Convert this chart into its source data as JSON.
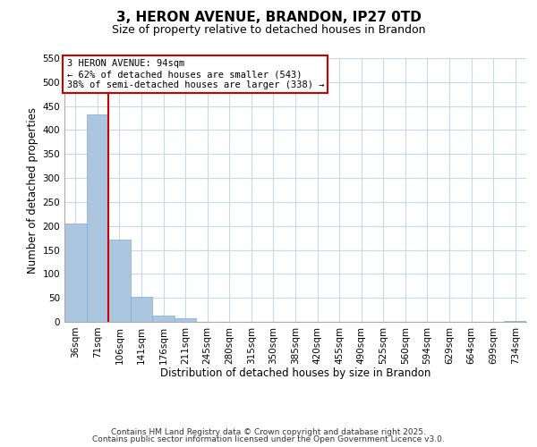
{
  "title": "3, HERON AVENUE, BRANDON, IP27 0TD",
  "subtitle": "Size of property relative to detached houses in Brandon",
  "xlabel": "Distribution of detached houses by size in Brandon",
  "ylabel": "Number of detached properties",
  "bar_labels": [
    "36sqm",
    "71sqm",
    "106sqm",
    "141sqm",
    "176sqm",
    "211sqm",
    "245sqm",
    "280sqm",
    "315sqm",
    "350sqm",
    "385sqm",
    "420sqm",
    "455sqm",
    "490sqm",
    "525sqm",
    "560sqm",
    "594sqm",
    "629sqm",
    "664sqm",
    "699sqm",
    "734sqm"
  ],
  "bar_values": [
    205,
    432,
    172,
    52,
    13,
    7,
    0,
    0,
    0,
    0,
    0,
    0,
    0,
    0,
    0,
    0,
    0,
    0,
    0,
    0,
    2
  ],
  "bar_color": "#adc6e0",
  "bar_edge_color": "#7bafd4",
  "grid_color": "#c8d8e8",
  "background_color": "#ffffff",
  "ylim": [
    0,
    550
  ],
  "yticks": [
    0,
    50,
    100,
    150,
    200,
    250,
    300,
    350,
    400,
    450,
    500,
    550
  ],
  "property_line_color": "#cc0000",
  "annotation_box_text": "3 HERON AVENUE: 94sqm\n← 62% of detached houses are smaller (543)\n38% of semi-detached houses are larger (338) →",
  "annotation_box_color": "#cc0000",
  "footer_line1": "Contains HM Land Registry data © Crown copyright and database right 2025.",
  "footer_line2": "Contains public sector information licensed under the Open Government Licence v3.0.",
  "title_fontsize": 11,
  "subtitle_fontsize": 9,
  "axis_label_fontsize": 8.5,
  "tick_fontsize": 7.5,
  "annotation_fontsize": 7.5,
  "footer_fontsize": 6.5
}
